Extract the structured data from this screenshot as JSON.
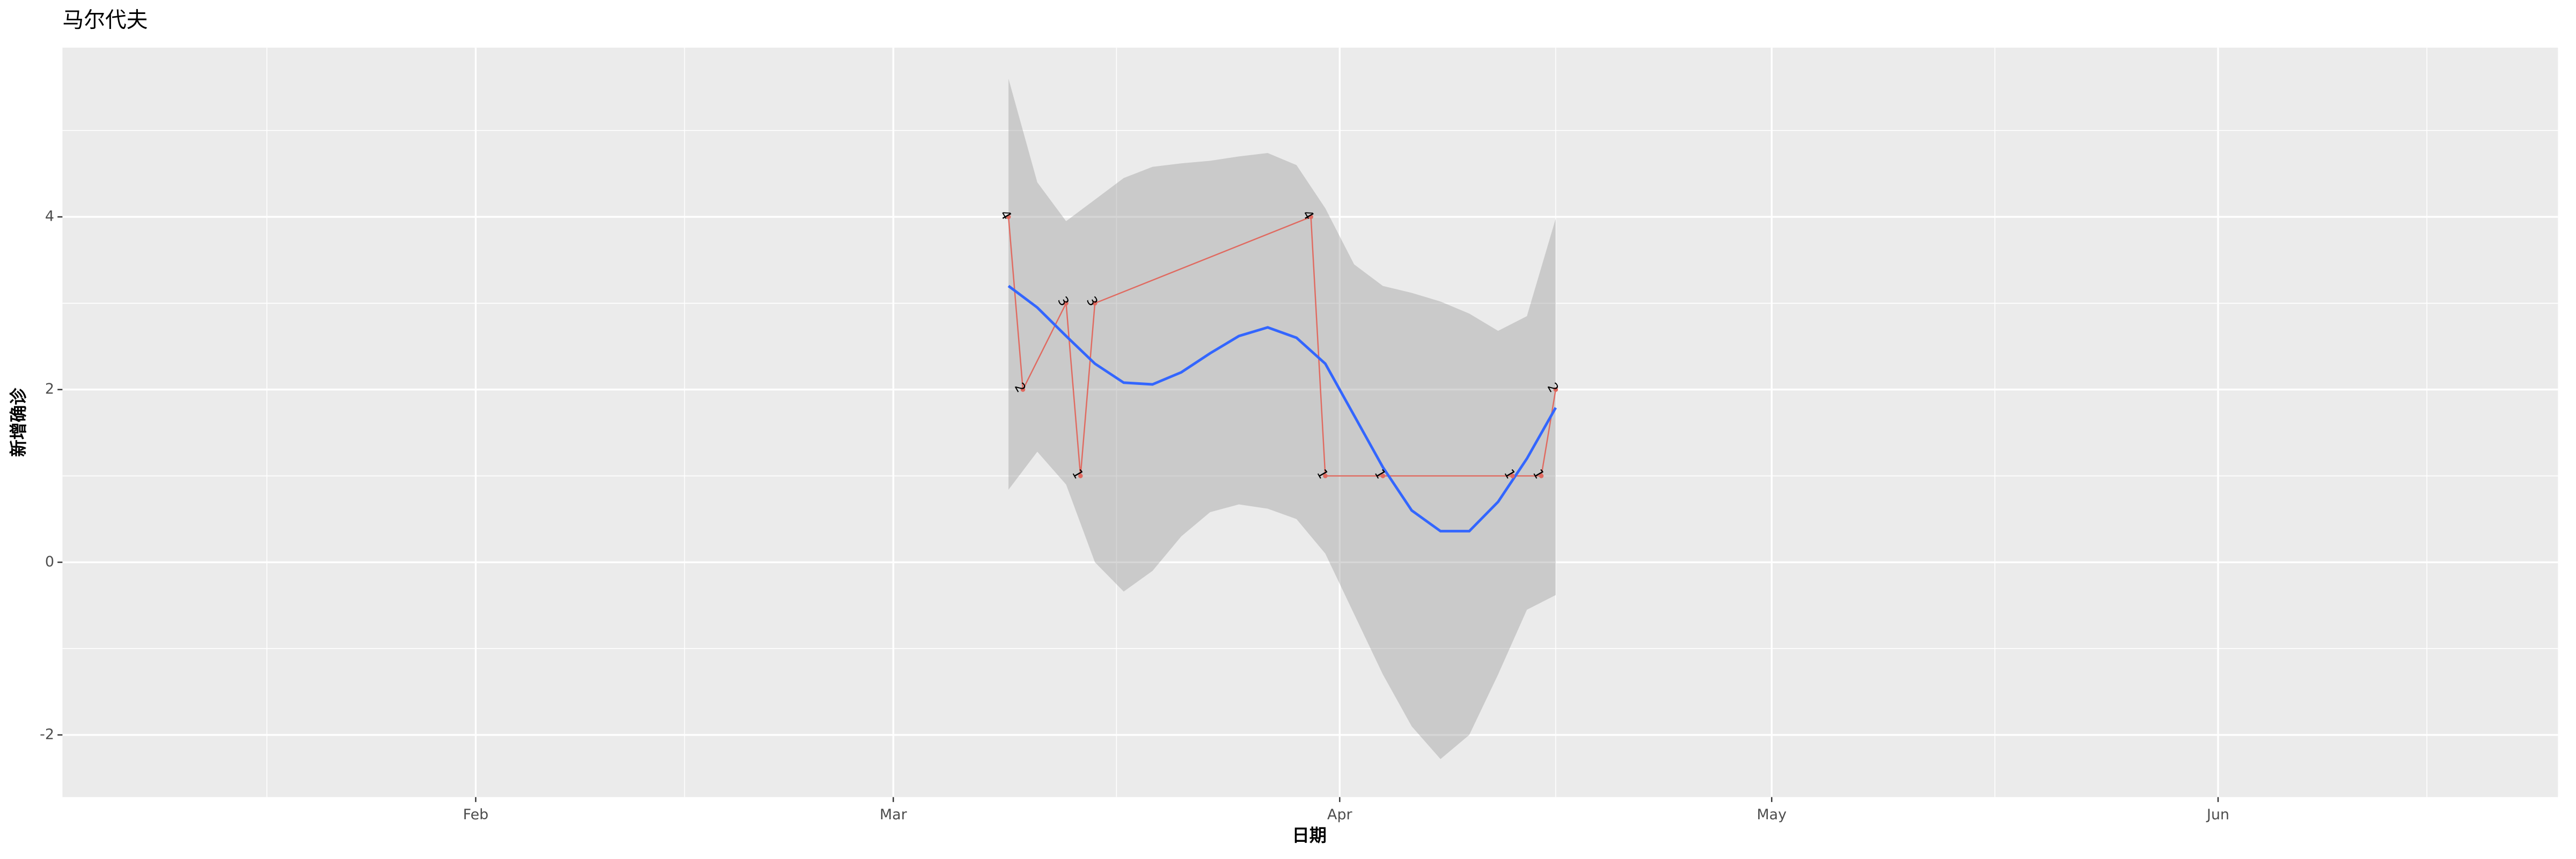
{
  "chart_data": {
    "type": "line",
    "title": "马尔代夫",
    "x_label": "日期",
    "y_label": "新增确诊",
    "x": [
      68,
      69,
      72,
      73,
      74,
      89,
      90,
      94,
      103,
      105,
      106
    ],
    "values": [
      4,
      2,
      3,
      1,
      3,
      4,
      1,
      1,
      1,
      1,
      2
    ],
    "color": "#e06a60",
    "smooth": {
      "color": "#3366ff",
      "band_color": "#999999",
      "x": [
        68,
        70,
        72,
        74,
        76,
        78,
        80,
        82,
        84,
        86,
        88,
        90,
        92,
        94,
        96,
        98,
        100,
        102,
        104,
        106
      ],
      "y": [
        3.2,
        2.95,
        2.62,
        2.3,
        2.08,
        2.06,
        2.2,
        2.42,
        2.62,
        2.72,
        2.6,
        2.3,
        1.7,
        1.1,
        0.6,
        0.36,
        0.36,
        0.7,
        1.2,
        1.79
      ],
      "ymax": [
        5.6,
        4.4,
        3.95,
        4.2,
        4.45,
        4.58,
        4.62,
        4.65,
        4.7,
        4.74,
        4.6,
        4.1,
        3.45,
        3.2,
        3.12,
        3.02,
        2.88,
        2.68,
        2.85,
        3.98
      ],
      "ymin": [
        0.84,
        1.28,
        0.9,
        0.0,
        -0.34,
        -0.1,
        0.3,
        0.58,
        0.67,
        0.62,
        0.5,
        0.1,
        -0.6,
        -1.3,
        -1.9,
        -2.28,
        -2.0,
        -1.3,
        -0.55,
        -0.38
      ]
    },
    "xlim": [
      2.3,
      175.6
    ],
    "xticks": [
      {
        "value": 31,
        "label": "Feb"
      },
      {
        "value": 60,
        "label": "Mar"
      },
      {
        "value": 91,
        "label": "Apr"
      },
      {
        "value": 121,
        "label": "May"
      },
      {
        "value": 152,
        "label": "Jun"
      }
    ],
    "xminor": [
      16.5,
      45.5,
      75.5,
      106,
      136.5,
      166.5
    ],
    "ylim": [
      -2.72,
      5.96
    ],
    "yticks": [
      -2,
      0,
      2,
      4
    ],
    "yminor": [
      -1,
      1,
      3,
      5
    ],
    "grid": true
  }
}
